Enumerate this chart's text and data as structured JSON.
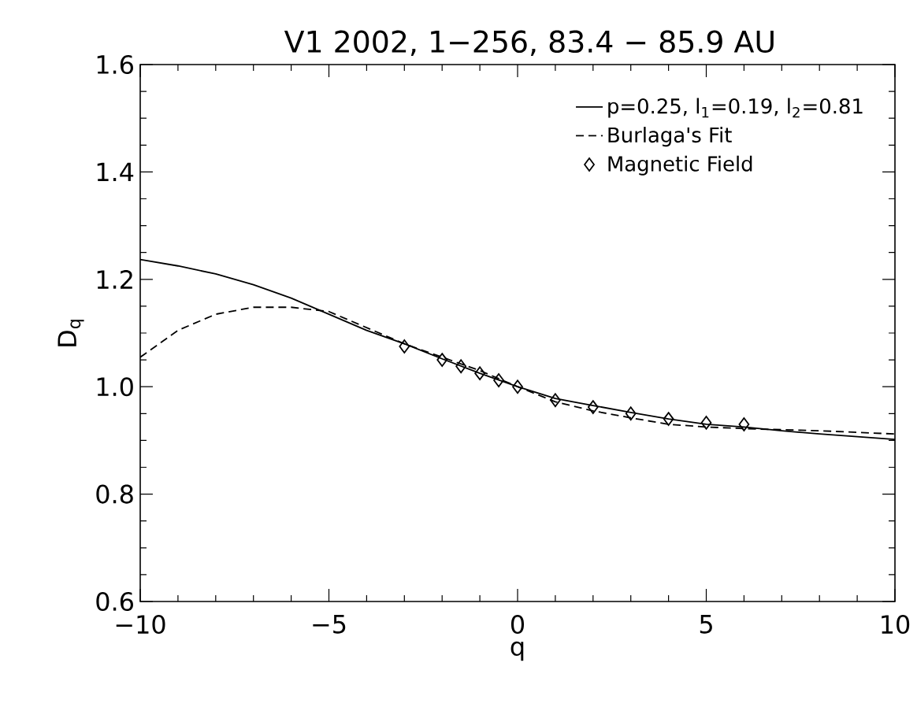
{
  "chart_data": {
    "type": "line",
    "title": "V1 2002, 1−256, 83.4 − 85.9 AU",
    "xlabel": "q",
    "ylabel": "D$_{q}$",
    "xlim": [
      -10,
      10
    ],
    "ylim": [
      0.6,
      1.6
    ],
    "xticks": [
      {
        "value": -10,
        "label": "−10"
      },
      {
        "value": -5,
        "label": "−5"
      },
      0,
      5,
      10
    ],
    "yticks": [
      0.6,
      0.8,
      {
        "value": 1,
        "label": "1.0"
      },
      1.2,
      1.4,
      1.6
    ],
    "legend": "top right",
    "series": [
      {
        "name": "p=0.25, l$_{1}$=0.19, l$_{2}$=0.81",
        "type": "line",
        "color": "#000000",
        "line_style": "solid",
        "marker": "none",
        "x": [
          -10,
          -9,
          -8,
          -7,
          -6,
          -5,
          -4,
          -3,
          -2,
          -1,
          0,
          1,
          2,
          3,
          4,
          5,
          6,
          7,
          8,
          9,
          10
        ],
        "values": [
          1.237,
          1.225,
          1.21,
          1.19,
          1.165,
          1.135,
          1.105,
          1.08,
          1.052,
          1.025,
          1.0,
          0.978,
          0.965,
          0.952,
          0.94,
          0.93,
          0.925,
          0.918,
          0.912,
          0.907,
          0.902
        ]
      },
      {
        "name": "Burlaga's Fit",
        "type": "line",
        "color": "#000000",
        "line_style": "dashed",
        "marker": "none",
        "x": [
          -10,
          -9,
          -8,
          -7,
          -6,
          -5,
          -4,
          -3,
          -2,
          -1,
          0,
          1,
          2,
          3,
          4,
          5,
          6,
          7,
          8,
          9,
          10
        ],
        "values": [
          1.055,
          1.105,
          1.135,
          1.148,
          1.148,
          1.14,
          1.11,
          1.08,
          1.055,
          1.03,
          1.0,
          0.972,
          0.955,
          0.942,
          0.93,
          0.925,
          0.922,
          0.92,
          0.918,
          0.915,
          0.912
        ]
      },
      {
        "name": "Magnetic Field",
        "type": "scatter",
        "color": "#000000",
        "marker": "diamond",
        "x": [
          -3,
          -2,
          -1.5,
          -1,
          -0.5,
          0,
          1,
          2,
          3,
          4,
          5,
          6
        ],
        "values": [
          1.075,
          1.05,
          1.038,
          1.025,
          1.012,
          1.0,
          0.975,
          0.962,
          0.95,
          0.94,
          0.933,
          0.93
        ]
      }
    ]
  }
}
